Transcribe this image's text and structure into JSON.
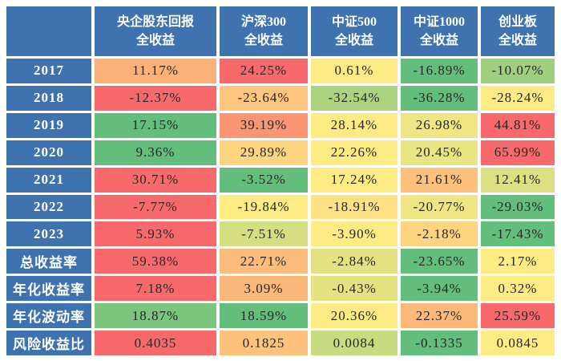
{
  "page": {
    "background": "#FFFFFF",
    "grid_gap_color": "#FFFFFF"
  },
  "chart_data": {
    "type": "table",
    "title": "",
    "columns": [
      "央企股东回报\n全收益",
      "沪深300\n全收益",
      "中证500\n全收益",
      "中证1000\n全收益",
      "创业板\n全收益"
    ],
    "row_labels": [
      "2017",
      "2018",
      "2019",
      "2020",
      "2021",
      "2022",
      "2023",
      "总收益率",
      "年化收益率",
      "年化波动率",
      "风险收益比"
    ],
    "rows": [
      {
        "label": "2017",
        "display": [
          "11.17%",
          "24.25%",
          "0.61%",
          "-16.89%",
          "-10.07%"
        ],
        "values": [
          11.17,
          24.25,
          0.61,
          -16.89,
          -10.07
        ]
      },
      {
        "label": "2018",
        "display": [
          "-12.37%",
          "-23.64%",
          "-32.54%",
          "-36.28%",
          "-28.24%"
        ],
        "values": [
          -12.37,
          -23.64,
          -32.54,
          -36.28,
          -28.24
        ]
      },
      {
        "label": "2019",
        "display": [
          "17.15%",
          "39.19%",
          "28.14%",
          "26.98%",
          "44.81%"
        ],
        "values": [
          17.15,
          39.19,
          28.14,
          26.98,
          44.81
        ]
      },
      {
        "label": "2020",
        "display": [
          "9.36%",
          "29.89%",
          "22.26%",
          "20.45%",
          "65.99%"
        ],
        "values": [
          9.36,
          29.89,
          22.26,
          20.45,
          65.99
        ]
      },
      {
        "label": "2021",
        "display": [
          "30.71%",
          "-3.52%",
          "17.24%",
          "21.61%",
          "12.41%"
        ],
        "values": [
          30.71,
          -3.52,
          17.24,
          21.61,
          12.41
        ]
      },
      {
        "label": "2022",
        "display": [
          "-7.77%",
          "-19.84%",
          "-18.91%",
          "-20.77%",
          "-29.03%"
        ],
        "values": [
          -7.77,
          -19.84,
          -18.91,
          -20.77,
          -29.03
        ]
      },
      {
        "label": "2023",
        "display": [
          "5.93%",
          "-7.51%",
          "-3.90%",
          "-2.18%",
          "-17.43%"
        ],
        "values": [
          5.93,
          -7.51,
          -3.9,
          -2.18,
          -17.43
        ]
      },
      {
        "label": "总收益率",
        "display": [
          "59.38%",
          "22.71%",
          "-2.84%",
          "-23.65%",
          "2.17%"
        ],
        "values": [
          59.38,
          22.71,
          -2.84,
          -23.65,
          2.17
        ]
      },
      {
        "label": "年化收益率",
        "display": [
          "7.18%",
          "3.09%",
          "-0.43%",
          "-3.94%",
          "0.32%"
        ],
        "values": [
          7.18,
          3.09,
          -0.43,
          -3.94,
          0.32
        ]
      },
      {
        "label": "年化波动率",
        "display": [
          "18.87%",
          "18.59%",
          "20.36%",
          "22.37%",
          "25.59%"
        ],
        "values": [
          18.87,
          18.59,
          20.36,
          22.37,
          25.59
        ]
      },
      {
        "label": "风险收益比",
        "display": [
          "0.4035",
          "0.1825",
          "0.0084",
          "-0.1335",
          "0.0845"
        ],
        "values": [
          0.4035,
          0.1825,
          0.0084,
          -0.1335,
          0.0845
        ]
      }
    ],
    "heatmap": {
      "scope": "per-row",
      "midpoint": "median",
      "high_color": "#F8696B",
      "mid_color": "#FFEB84",
      "low_color": "#63BE7B"
    },
    "layout": {
      "header_bg": "#3E73AF",
      "row_label_bg": "#3E73AF",
      "header_text_color": "#FFFFFF",
      "value_text_color": "#262626"
    }
  }
}
